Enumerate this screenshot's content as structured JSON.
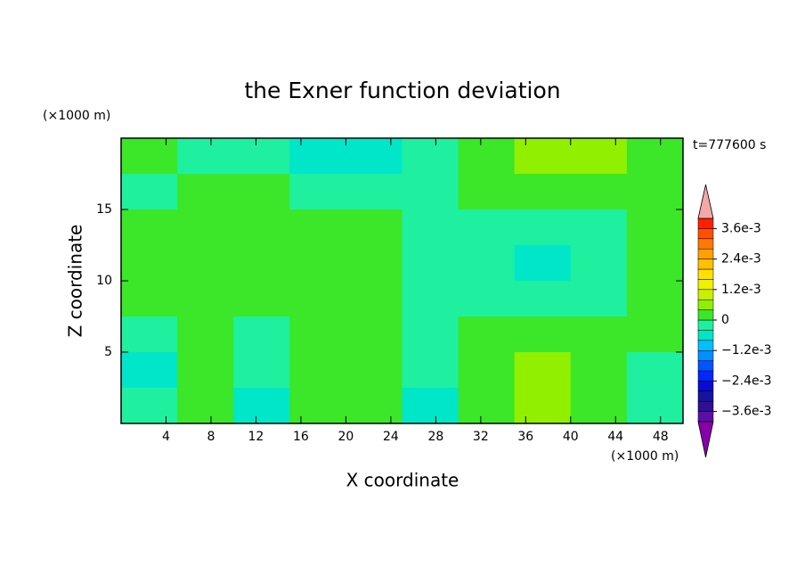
{
  "chart_data": {
    "type": "contour",
    "title": "the Exner function deviation",
    "x_label": "X coordinate",
    "y_label": "Z coordinate",
    "x_unit": "(×1000 m)",
    "y_unit": "(×1000 m)",
    "time_label": "t=777600 s",
    "xlim": [
      0,
      50
    ],
    "ylim": [
      0,
      20
    ],
    "xticks": [
      4,
      8,
      12,
      16,
      20,
      24,
      28,
      32,
      36,
      40,
      44,
      48
    ],
    "yticks": [
      5,
      10,
      15
    ],
    "x": [
      2.5,
      7.5,
      12.5,
      17.5,
      22.5,
      27.5,
      32.5,
      37.5,
      42.5,
      47.5
    ],
    "y": [
      18.75,
      16.25,
      13.75,
      11.25,
      8.75,
      6.25,
      3.75,
      1.25
    ],
    "z": [
      [
        0.0002,
        -0.0002,
        -0.0002,
        -0.0006,
        -0.0006,
        -0.0002,
        0.0002,
        0.0006,
        0.0006,
        0.0002
      ],
      [
        -0.0002,
        0.0002,
        0.0002,
        -0.0002,
        -0.0002,
        -0.0002,
        0.0002,
        0.0002,
        0.0002,
        0.0002
      ],
      [
        0.0002,
        0.0002,
        0.0002,
        0.0002,
        0.0002,
        -0.0002,
        -0.0002,
        -0.0002,
        -0.0002,
        0.0002
      ],
      [
        0.0002,
        0.0002,
        0.0002,
        0.0002,
        0.0002,
        -0.0002,
        -0.0002,
        -0.0006,
        -0.0002,
        0.0002
      ],
      [
        0.0002,
        0.0002,
        0.0002,
        0.0002,
        0.0002,
        -0.0002,
        -0.0002,
        -0.0002,
        -0.0002,
        0.0002
      ],
      [
        -0.0002,
        0.0002,
        -0.0002,
        0.0002,
        0.0002,
        -0.0002,
        0.0002,
        0.0002,
        0.0002,
        0.0002
      ],
      [
        -0.0006,
        0.0002,
        -0.0002,
        0.0002,
        0.0002,
        -0.0002,
        0.0002,
        0.0006,
        0.0002,
        -0.0002
      ],
      [
        -0.0002,
        0.0002,
        -0.0006,
        0.0002,
        0.0002,
        -0.0006,
        0.0002,
        0.0006,
        0.0002,
        -0.0002
      ]
    ],
    "colorbar": {
      "levels": [
        -0.004,
        -0.0036,
        -0.0032,
        -0.0028,
        -0.0024,
        -0.002,
        -0.0016,
        -0.0012,
        -0.0008,
        -0.0004,
        0,
        0.0004,
        0.0008,
        0.0012,
        0.0016,
        0.002,
        0.0024,
        0.0028,
        0.0032,
        0.0036,
        0.004
      ],
      "colors": [
        "#5c0fa8",
        "#2e0f96",
        "#1414a0",
        "#0a0ad2",
        "#0028ff",
        "#0055ff",
        "#0090ff",
        "#00c0ff",
        "#00e6c8",
        "#1ef0a0",
        "#3ce628",
        "#90f000",
        "#c8f000",
        "#f0f000",
        "#ffe000",
        "#ffc000",
        "#ffa000",
        "#ff7800",
        "#ff5000",
        "#ff2000"
      ],
      "under_color": "#8800aa",
      "over_color": "#f4a8a8",
      "ticks": [
        {
          "value": 0.0036,
          "label": "3.6e-3"
        },
        {
          "value": 0.0024,
          "label": "2.4e-3"
        },
        {
          "value": 0.0012,
          "label": "1.2e-3"
        },
        0,
        {
          "value": -0.0012,
          "label": "−1.2e-3"
        },
        {
          "value": -0.0024,
          "label": "−2.4e-3"
        },
        {
          "value": -0.0036,
          "label": "−3.6e-3"
        }
      ]
    }
  }
}
